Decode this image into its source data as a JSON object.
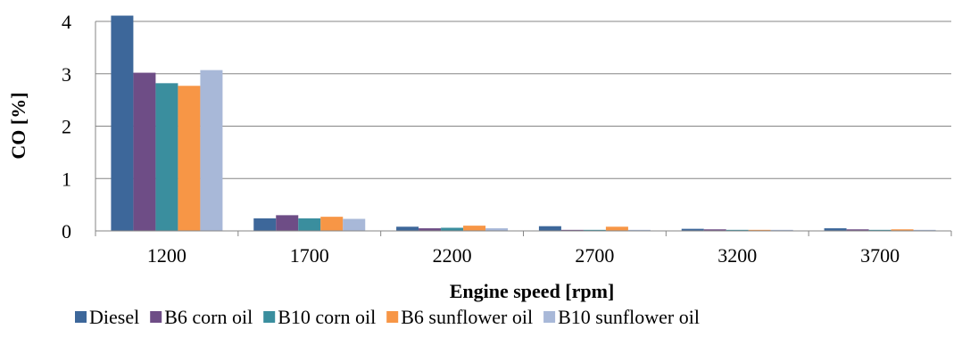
{
  "chart_data": {
    "type": "bar",
    "xlabel": "Engine speed [rpm]",
    "ylabel": "CO [%]",
    "ylim": [
      0,
      4
    ],
    "yticks": [
      0,
      1,
      2,
      3,
      4
    ],
    "grid": true,
    "legend_position": "bottom",
    "categories": [
      "1200",
      "1700",
      "2200",
      "2700",
      "3200",
      "3700"
    ],
    "series": [
      {
        "name": "Diesel",
        "color": "#3D679A",
        "values": [
          4.11,
          0.24,
          0.08,
          0.09,
          0.04,
          0.05
        ]
      },
      {
        "name": "B6 corn oil",
        "color": "#6E4D86",
        "values": [
          3.02,
          0.3,
          0.05,
          0.02,
          0.03,
          0.03
        ]
      },
      {
        "name": "B10 corn oil",
        "color": "#3A8E9E",
        "values": [
          2.82,
          0.24,
          0.06,
          0.02,
          0.02,
          0.02
        ]
      },
      {
        "name": "B6 sunflower oil",
        "color": "#F79646",
        "values": [
          2.77,
          0.27,
          0.1,
          0.08,
          0.02,
          0.03
        ]
      },
      {
        "name": "B10 sunflower oil",
        "color": "#A8B8D8",
        "values": [
          3.07,
          0.23,
          0.05,
          0.02,
          0.02,
          0.02
        ]
      }
    ]
  }
}
